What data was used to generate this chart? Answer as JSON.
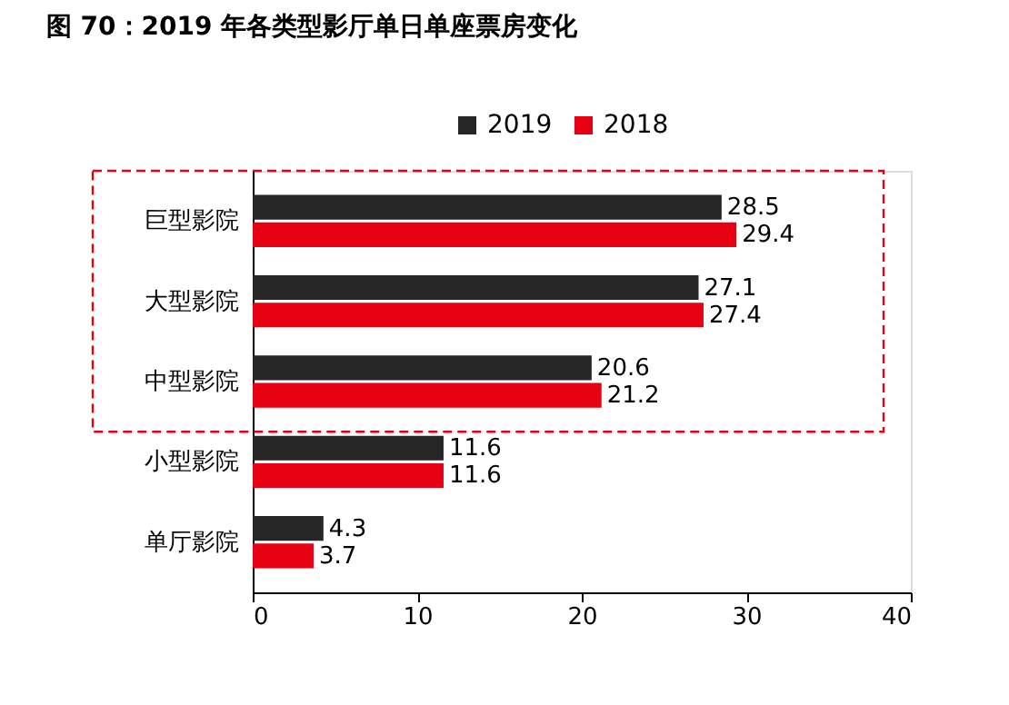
{
  "chart_data": {
    "type": "bar",
    "orientation": "horizontal",
    "title": "图 70：2019 年各类型影厅单日单座票房变化",
    "categories": [
      "巨型影院",
      "大型影院",
      "中型影院",
      "小型影院",
      "单厅影院"
    ],
    "series": [
      {
        "name": "2019",
        "color": "#262626",
        "values": [
          28.5,
          27.1,
          20.6,
          11.6,
          4.3
        ]
      },
      {
        "name": "2018",
        "color": "#e60012",
        "values": [
          29.4,
          27.4,
          21.2,
          11.6,
          3.7
        ]
      }
    ],
    "xlim": [
      0,
      40
    ],
    "xticks": [
      0,
      10,
      20,
      30,
      40
    ],
    "grid": false,
    "legend": "top",
    "data_labels": true
  }
}
